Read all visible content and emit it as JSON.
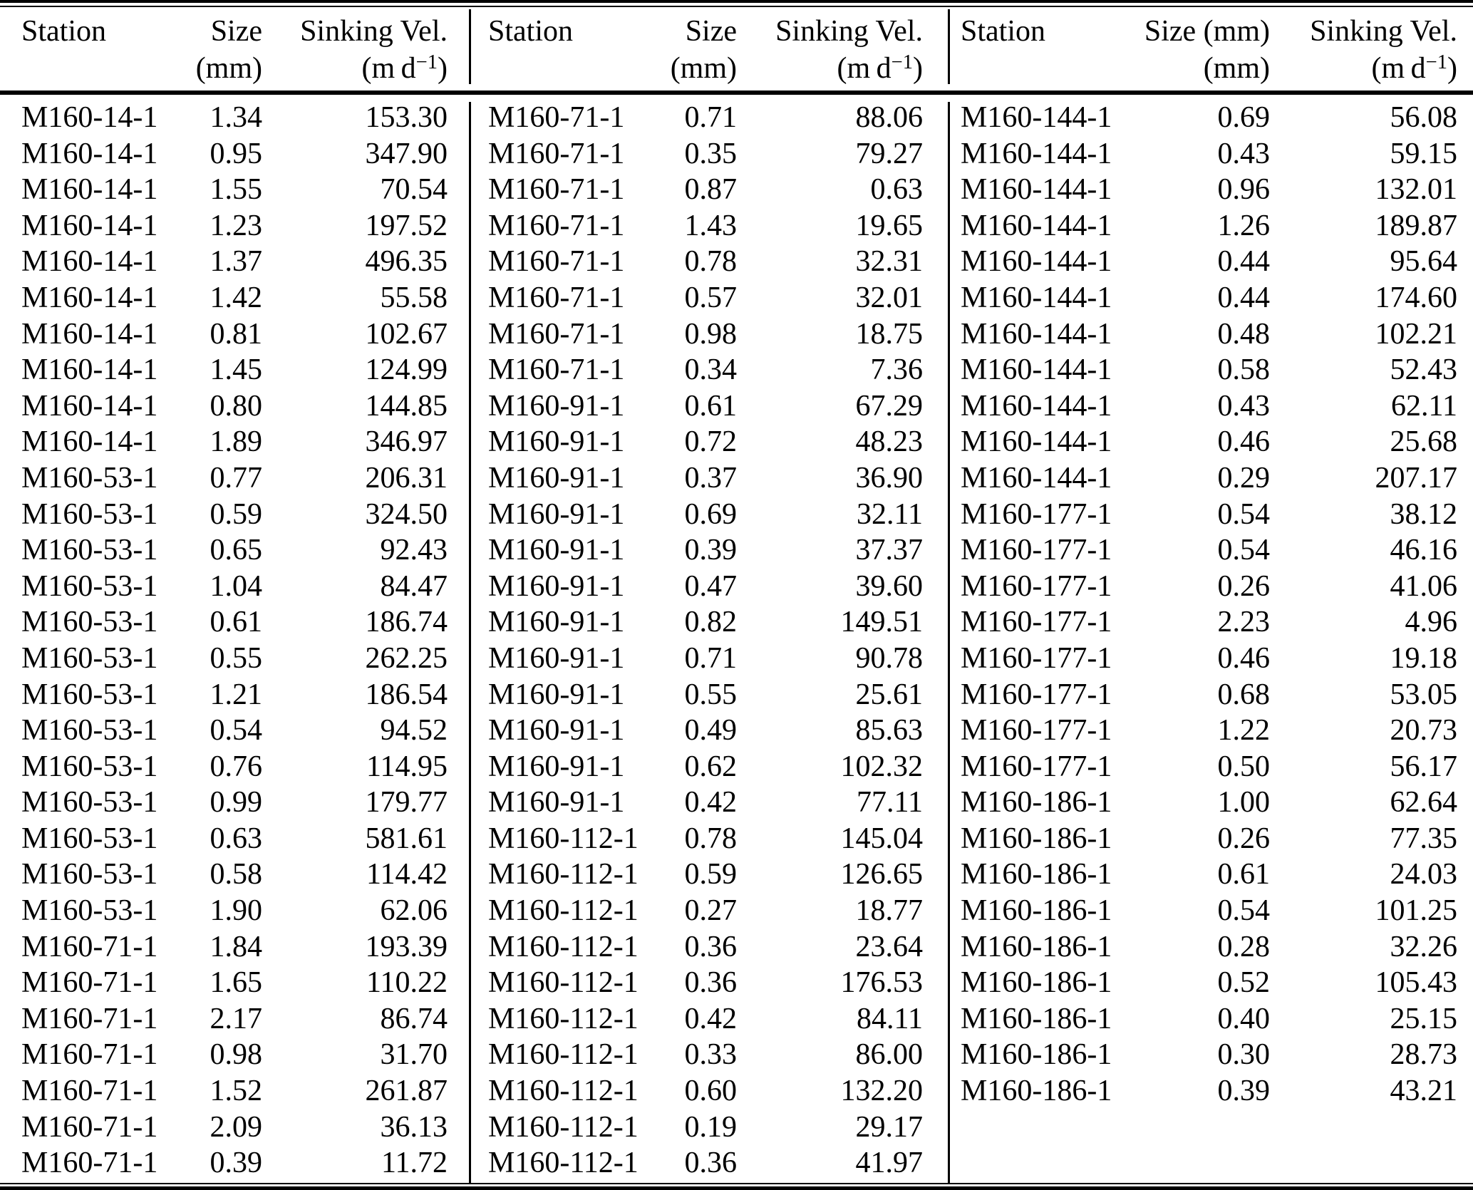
{
  "colors": {
    "text": "#000000",
    "background": "#ffffff"
  },
  "table": {
    "groups": [
      {
        "headers": {
          "station": "Station",
          "size_line1": "Size",
          "size_line2": "(mm)",
          "vel_line1": "Sinking Vel.",
          "vel_unit_prefix": "(m d",
          "vel_unit_sup": "−1",
          "vel_unit_suffix": ")"
        },
        "rows": [
          [
            "M160-14-1",
            "1.34",
            "153.30"
          ],
          [
            "M160-14-1",
            "0.95",
            "347.90"
          ],
          [
            "M160-14-1",
            "1.55",
            "70.54"
          ],
          [
            "M160-14-1",
            "1.23",
            "197.52"
          ],
          [
            "M160-14-1",
            "1.37",
            "496.35"
          ],
          [
            "M160-14-1",
            "1.42",
            "55.58"
          ],
          [
            "M160-14-1",
            "0.81",
            "102.67"
          ],
          [
            "M160-14-1",
            "1.45",
            "124.99"
          ],
          [
            "M160-14-1",
            "0.80",
            "144.85"
          ],
          [
            "M160-14-1",
            "1.89",
            "346.97"
          ],
          [
            "M160-53-1",
            "0.77",
            "206.31"
          ],
          [
            "M160-53-1",
            "0.59",
            "324.50"
          ],
          [
            "M160-53-1",
            "0.65",
            "92.43"
          ],
          [
            "M160-53-1",
            "1.04",
            "84.47"
          ],
          [
            "M160-53-1",
            "0.61",
            "186.74"
          ],
          [
            "M160-53-1",
            "0.55",
            "262.25"
          ],
          [
            "M160-53-1",
            "1.21",
            "186.54"
          ],
          [
            "M160-53-1",
            "0.54",
            "94.52"
          ],
          [
            "M160-53-1",
            "0.76",
            "114.95"
          ],
          [
            "M160-53-1",
            "0.99",
            "179.77"
          ],
          [
            "M160-53-1",
            "0.63",
            "581.61"
          ],
          [
            "M160-53-1",
            "0.58",
            "114.42"
          ],
          [
            "M160-53-1",
            "1.90",
            "62.06"
          ],
          [
            "M160-71-1",
            "1.84",
            "193.39"
          ],
          [
            "M160-71-1",
            "1.65",
            "110.22"
          ],
          [
            "M160-71-1",
            "2.17",
            "86.74"
          ],
          [
            "M160-71-1",
            "0.98",
            "31.70"
          ],
          [
            "M160-71-1",
            "1.52",
            "261.87"
          ],
          [
            "M160-71-1",
            "2.09",
            "36.13"
          ],
          [
            "M160-71-1",
            "0.39",
            "11.72"
          ]
        ]
      },
      {
        "headers": {
          "station": "Station",
          "size_line1": "Size",
          "size_line2": "(mm)",
          "vel_line1": "Sinking Vel.",
          "vel_unit_prefix": "(m d",
          "vel_unit_sup": "−1",
          "vel_unit_suffix": ")"
        },
        "rows": [
          [
            "M160-71-1",
            "0.71",
            "88.06"
          ],
          [
            "M160-71-1",
            "0.35",
            "79.27"
          ],
          [
            "M160-71-1",
            "0.87",
            "0.63"
          ],
          [
            "M160-71-1",
            "1.43",
            "19.65"
          ],
          [
            "M160-71-1",
            "0.78",
            "32.31"
          ],
          [
            "M160-71-1",
            "0.57",
            "32.01"
          ],
          [
            "M160-71-1",
            "0.98",
            "18.75"
          ],
          [
            "M160-71-1",
            "0.34",
            "7.36"
          ],
          [
            "M160-91-1",
            "0.61",
            "67.29"
          ],
          [
            "M160-91-1",
            "0.72",
            "48.23"
          ],
          [
            "M160-91-1",
            "0.37",
            "36.90"
          ],
          [
            "M160-91-1",
            "0.69",
            "32.11"
          ],
          [
            "M160-91-1",
            "0.39",
            "37.37"
          ],
          [
            "M160-91-1",
            "0.47",
            "39.60"
          ],
          [
            "M160-91-1",
            "0.82",
            "149.51"
          ],
          [
            "M160-91-1",
            "0.71",
            "90.78"
          ],
          [
            "M160-91-1",
            "0.55",
            "25.61"
          ],
          [
            "M160-91-1",
            "0.49",
            "85.63"
          ],
          [
            "M160-91-1",
            "0.62",
            "102.32"
          ],
          [
            "M160-91-1",
            "0.42",
            "77.11"
          ],
          [
            "M160-112-1",
            "0.78",
            "145.04"
          ],
          [
            "M160-112-1",
            "0.59",
            "126.65"
          ],
          [
            "M160-112-1",
            "0.27",
            "18.77"
          ],
          [
            "M160-112-1",
            "0.36",
            "23.64"
          ],
          [
            "M160-112-1",
            "0.36",
            "176.53"
          ],
          [
            "M160-112-1",
            "0.42",
            "84.11"
          ],
          [
            "M160-112-1",
            "0.33",
            "86.00"
          ],
          [
            "M160-112-1",
            "0.60",
            "132.20"
          ],
          [
            "M160-112-1",
            "0.19",
            "29.17"
          ],
          [
            "M160-112-1",
            "0.36",
            "41.97"
          ]
        ]
      },
      {
        "headers": {
          "station": "Station",
          "size_line1": "Size (mm)",
          "size_line2": "(mm)",
          "vel_line1": "Sinking Vel.",
          "vel_unit_prefix": "(m d",
          "vel_unit_sup": "−1",
          "vel_unit_suffix": ")"
        },
        "rows": [
          [
            "M160-144-1",
            "0.69",
            "56.08"
          ],
          [
            "M160-144-1",
            "0.43",
            "59.15"
          ],
          [
            "M160-144-1",
            "0.96",
            "132.01"
          ],
          [
            "M160-144-1",
            "1.26",
            "189.87"
          ],
          [
            "M160-144-1",
            "0.44",
            "95.64"
          ],
          [
            "M160-144-1",
            "0.44",
            "174.60"
          ],
          [
            "M160-144-1",
            "0.48",
            "102.21"
          ],
          [
            "M160-144-1",
            "0.58",
            "52.43"
          ],
          [
            "M160-144-1",
            "0.43",
            "62.11"
          ],
          [
            "M160-144-1",
            "0.46",
            "25.68"
          ],
          [
            "M160-144-1",
            "0.29",
            "207.17"
          ],
          [
            "M160-177-1",
            "0.54",
            "38.12"
          ],
          [
            "M160-177-1",
            "0.54",
            "46.16"
          ],
          [
            "M160-177-1",
            "0.26",
            "41.06"
          ],
          [
            "M160-177-1",
            "2.23",
            "4.96"
          ],
          [
            "M160-177-1",
            "0.46",
            "19.18"
          ],
          [
            "M160-177-1",
            "0.68",
            "53.05"
          ],
          [
            "M160-177-1",
            "1.22",
            "20.73"
          ],
          [
            "M160-177-1",
            "0.50",
            "56.17"
          ],
          [
            "M160-186-1",
            "1.00",
            "62.64"
          ],
          [
            "M160-186-1",
            "0.26",
            "77.35"
          ],
          [
            "M160-186-1",
            "0.61",
            "24.03"
          ],
          [
            "M160-186-1",
            "0.54",
            "101.25"
          ],
          [
            "M160-186-1",
            "0.28",
            "32.26"
          ],
          [
            "M160-186-1",
            "0.52",
            "105.43"
          ],
          [
            "M160-186-1",
            "0.40",
            "25.15"
          ],
          [
            "M160-186-1",
            "0.30",
            "28.73"
          ],
          [
            "M160-186-1",
            "0.39",
            "43.21"
          ]
        ]
      }
    ]
  }
}
